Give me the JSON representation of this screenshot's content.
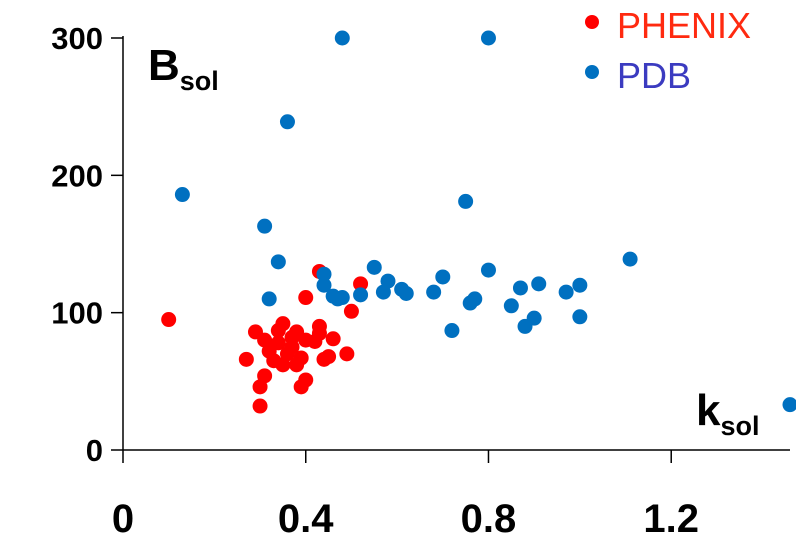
{
  "chart_data": {
    "type": "scatter",
    "title": "",
    "xlabel": {
      "main": "k",
      "sub": "sol"
    },
    "ylabel": {
      "main": "B",
      "sub": "sol"
    },
    "xlim": [
      0,
      1.46
    ],
    "ylim": [
      0,
      300
    ],
    "x_ticks": [
      0,
      0.4,
      0.8,
      1.2
    ],
    "x_tick_labels": [
      "0",
      "0.4",
      "0.8",
      "1.2"
    ],
    "y_ticks": [
      0,
      100,
      200,
      300
    ],
    "y_tick_labels": [
      "0",
      "100",
      "200",
      "300"
    ],
    "grid": false,
    "legend_position": "top-right",
    "series": [
      {
        "name": "PHENIX",
        "color": "#ff0000",
        "legend_color": "#ff2a10",
        "points": [
          [
            0.1,
            95
          ],
          [
            0.27,
            66
          ],
          [
            0.29,
            86
          ],
          [
            0.3,
            46
          ],
          [
            0.3,
            32
          ],
          [
            0.31,
            54
          ],
          [
            0.31,
            80
          ],
          [
            0.32,
            72
          ],
          [
            0.33,
            65
          ],
          [
            0.34,
            87
          ],
          [
            0.34,
            78
          ],
          [
            0.35,
            92
          ],
          [
            0.35,
            62
          ],
          [
            0.36,
            70
          ],
          [
            0.37,
            82
          ],
          [
            0.37,
            75
          ],
          [
            0.38,
            86
          ],
          [
            0.38,
            62
          ],
          [
            0.39,
            67
          ],
          [
            0.39,
            46
          ],
          [
            0.4,
            80
          ],
          [
            0.4,
            51
          ],
          [
            0.4,
            111
          ],
          [
            0.42,
            79
          ],
          [
            0.43,
            90
          ],
          [
            0.43,
            85
          ],
          [
            0.43,
            130
          ],
          [
            0.44,
            66
          ],
          [
            0.45,
            68
          ],
          [
            0.46,
            81
          ],
          [
            0.49,
            70
          ],
          [
            0.5,
            101
          ],
          [
            0.52,
            121
          ]
        ]
      },
      {
        "name": "PDB",
        "color": "#0070c0",
        "legend_color": "#3b3bc0",
        "points": [
          [
            0.13,
            186
          ],
          [
            0.31,
            163
          ],
          [
            0.32,
            110
          ],
          [
            0.34,
            137
          ],
          [
            0.36,
            239
          ],
          [
            0.44,
            128
          ],
          [
            0.44,
            120
          ],
          [
            0.46,
            112
          ],
          [
            0.47,
            110
          ],
          [
            0.48,
            300
          ],
          [
            0.48,
            111
          ],
          [
            0.52,
            113
          ],
          [
            0.55,
            133
          ],
          [
            0.57,
            115
          ],
          [
            0.58,
            123
          ],
          [
            0.61,
            117
          ],
          [
            0.62,
            114
          ],
          [
            0.68,
            115
          ],
          [
            0.7,
            126
          ],
          [
            0.72,
            87
          ],
          [
            0.75,
            181
          ],
          [
            0.76,
            107
          ],
          [
            0.77,
            110
          ],
          [
            0.8,
            131
          ],
          [
            0.8,
            300
          ],
          [
            0.85,
            105
          ],
          [
            0.87,
            118
          ],
          [
            0.88,
            90
          ],
          [
            0.9,
            96
          ],
          [
            0.91,
            121
          ],
          [
            0.97,
            115
          ],
          [
            1.0,
            120
          ],
          [
            1.0,
            97
          ],
          [
            1.11,
            139
          ],
          [
            1.46,
            33
          ]
        ]
      }
    ]
  }
}
